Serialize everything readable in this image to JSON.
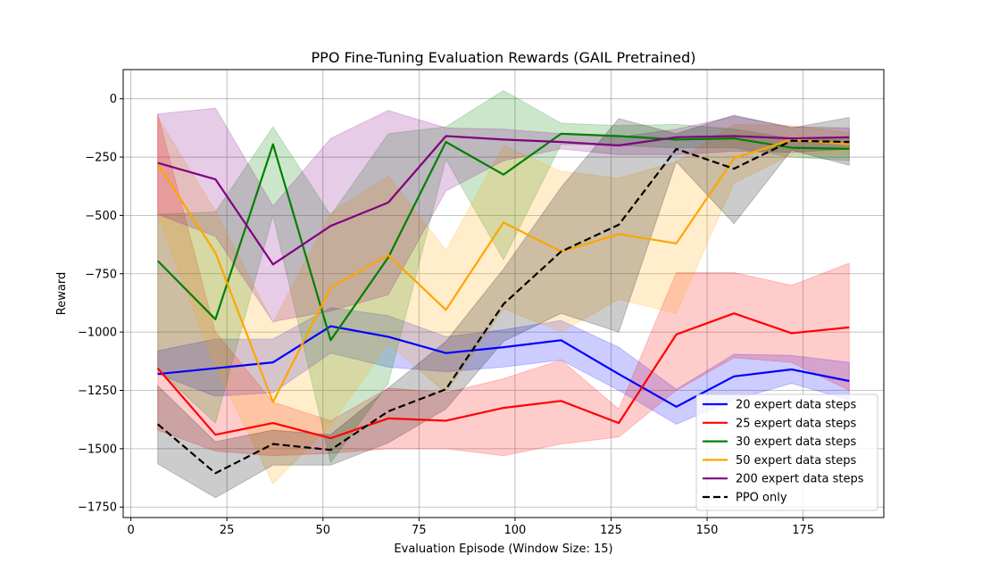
{
  "chart_data": {
    "type": "line",
    "title": "PPO Fine-Tuning Evaluation Rewards (GAIL Pretrained)",
    "xlabel": "Evaluation Episode (Window Size: 15)",
    "ylabel": "Reward",
    "xlim": [
      -2,
      196
    ],
    "ylim": [
      -1795,
      125
    ],
    "xticks": [
      0,
      25,
      50,
      75,
      100,
      125,
      150,
      175
    ],
    "yticks": [
      0,
      -250,
      -500,
      -750,
      -1000,
      -1250,
      -1500,
      -1750
    ],
    "ytick_labels": [
      "0",
      "−250",
      "−500",
      "−750",
      "−1000",
      "−1250",
      "−1500",
      "−1750"
    ],
    "grid": true,
    "legend_position": "lower-right",
    "x": [
      7,
      22,
      37,
      52,
      67,
      82,
      97,
      112,
      127,
      142,
      157,
      172,
      187
    ],
    "series": [
      {
        "name": "20 expert data steps",
        "color": "#0000ff",
        "dashed": false,
        "values": [
          -1180,
          -1155,
          -1130,
          -975,
          -1020,
          -1090,
          -1065,
          -1035,
          -1180,
          -1320,
          -1190,
          -1160,
          -1210
        ],
        "lower": [
          -1180,
          -1275,
          -1260,
          -1090,
          -1150,
          -1170,
          -1150,
          -1120,
          -1250,
          -1395,
          -1290,
          -1220,
          -1290
        ],
        "upper": [
          -1080,
          -1030,
          -1030,
          -895,
          -930,
          -1020,
          -990,
          -950,
          -1065,
          -1245,
          -1095,
          -1100,
          -1130
        ]
      },
      {
        "name": "25 expert data steps",
        "color": "#ff0000",
        "dashed": false,
        "values": [
          -1155,
          -1440,
          -1390,
          -1455,
          -1370,
          -1380,
          -1325,
          -1295,
          -1390,
          -1010,
          -920,
          -1005,
          -980
        ],
        "lower": [
          -1420,
          -1510,
          -1530,
          -1520,
          -1500,
          -1500,
          -1530,
          -1480,
          -1450,
          -1250,
          -1110,
          -1130,
          -1250
        ],
        "upper": [
          -65,
          -1000,
          -1300,
          -1380,
          -1240,
          -1260,
          -1200,
          -1120,
          -1330,
          -745,
          -745,
          -800,
          -705
        ]
      },
      {
        "name": "30 expert data steps",
        "color": "#008000",
        "dashed": false,
        "values": [
          -695,
          -945,
          -195,
          -1035,
          -680,
          -185,
          -325,
          -150,
          -160,
          -175,
          -170,
          -210,
          -215
        ],
        "lower": [
          -1160,
          -1390,
          -500,
          -1560,
          -1220,
          -260,
          -690,
          -195,
          -200,
          -210,
          -210,
          -250,
          -265
        ],
        "upper": [
          -495,
          -485,
          -120,
          -500,
          -150,
          -120,
          35,
          -105,
          -115,
          -110,
          -130,
          -170,
          -170
        ]
      },
      {
        "name": "50 expert data steps",
        "color": "#ffa500",
        "dashed": false,
        "values": [
          -280,
          -660,
          -1300,
          -810,
          -670,
          -905,
          -530,
          -655,
          -580,
          -620,
          -255,
          -175,
          -195
        ],
        "lower": [
          -500,
          -1150,
          -1650,
          -1400,
          -1050,
          -1260,
          -900,
          -1000,
          -860,
          -920,
          -360,
          -240,
          -240
        ],
        "upper": [
          -80,
          -480,
          -960,
          -490,
          -330,
          -650,
          -200,
          -310,
          -340,
          -270,
          -110,
          -115,
          -145
        ]
      },
      {
        "name": "200 expert data steps",
        "color": "#800080",
        "dashed": false,
        "values": [
          -275,
          -345,
          -710,
          -545,
          -445,
          -160,
          -175,
          -185,
          -200,
          -165,
          -160,
          -170,
          -165
        ],
        "lower": [
          -495,
          -590,
          -955,
          -910,
          -840,
          -395,
          -265,
          -215,
          -240,
          -240,
          -225,
          -230,
          -215
        ],
        "upper": [
          -65,
          -40,
          -460,
          -170,
          -50,
          -125,
          -130,
          -150,
          -165,
          -130,
          -75,
          -120,
          -125
        ]
      },
      {
        "name": "PPO only",
        "color": "#000000",
        "dashed": true,
        "values": [
          -1395,
          -1605,
          -1480,
          -1505,
          -1340,
          -1245,
          -880,
          -655,
          -540,
          -215,
          -300,
          -180,
          -185
        ],
        "lower": [
          -1565,
          -1710,
          -1570,
          -1570,
          -1475,
          -1330,
          -1040,
          -920,
          -1000,
          -270,
          -535,
          -220,
          -285
        ],
        "upper": [
          -1230,
          -1470,
          -1420,
          -1440,
          -1240,
          -1040,
          -730,
          -380,
          -85,
          -150,
          -70,
          -125,
          -80
        ]
      }
    ]
  }
}
